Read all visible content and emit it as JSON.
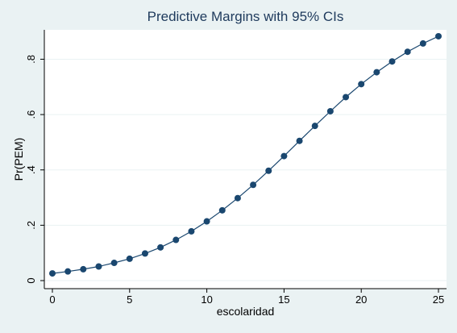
{
  "chart_data": {
    "type": "line",
    "title": "Predictive Margins with 95% CIs",
    "xlabel": "escolaridad",
    "ylabel": "Pr(PEM)",
    "xlim": [
      0,
      25
    ],
    "ylim": [
      0,
      0.88
    ],
    "x_ticks": [
      0,
      5,
      10,
      15,
      20,
      25
    ],
    "x_tick_labels": [
      "0",
      "5",
      "10",
      "15",
      "20",
      "25"
    ],
    "y_ticks": [
      0,
      0.2,
      0.4,
      0.6,
      0.8
    ],
    "y_tick_labels": [
      "0",
      ".2",
      ".4",
      ".6",
      ".8"
    ],
    "grid": true,
    "series": [
      {
        "x": [
          0,
          1,
          2,
          3,
          4,
          5,
          6,
          7,
          8,
          9,
          10,
          11,
          12,
          13,
          14,
          15,
          16,
          17,
          18,
          19,
          20,
          21,
          22,
          23,
          24,
          25
        ],
        "values": [
          0.026,
          0.033,
          0.041,
          0.051,
          0.064,
          0.079,
          0.098,
          0.12,
          0.147,
          0.178,
          0.214,
          0.254,
          0.298,
          0.346,
          0.397,
          0.45,
          0.505,
          0.559,
          0.612,
          0.663,
          0.71,
          0.753,
          0.792,
          0.827,
          0.857,
          0.883
        ]
      }
    ],
    "colors": {
      "background": "#eaf2f3",
      "plot_area": "#ffffff",
      "series": "#1a476f",
      "title": "#1e3a5c"
    }
  }
}
